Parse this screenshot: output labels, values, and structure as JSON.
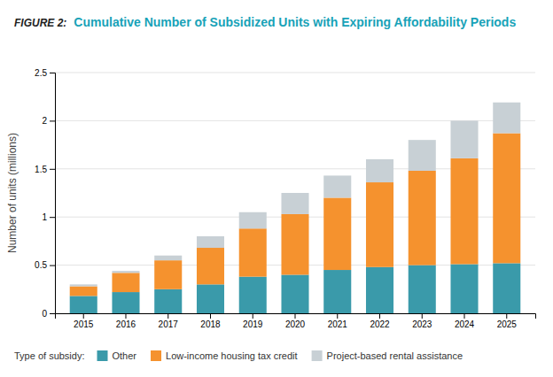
{
  "chart_data": {
    "type": "bar",
    "stacked": true,
    "title": "Cumulative Number of Subsidized Units with Expiring Affordability Periods",
    "annotations": [
      "FIGURE 2:",
      "Type of subsidy:"
    ],
    "ylabel": "Number of units (millions)",
    "categories": [
      "2015",
      "2016",
      "2017",
      "2018",
      "2019",
      "2020",
      "2021",
      "2022",
      "2023",
      "2024",
      "2025"
    ],
    "series": [
      {
        "name": "Other",
        "color": "#3a9aaa",
        "values": [
          0.18,
          0.22,
          0.25,
          0.3,
          0.38,
          0.4,
          0.45,
          0.48,
          0.5,
          0.51,
          0.52
        ]
      },
      {
        "name": "Low-income housing tax credit",
        "color": "#f5922e",
        "values": [
          0.1,
          0.2,
          0.3,
          0.38,
          0.5,
          0.63,
          0.75,
          0.88,
          0.98,
          1.1,
          1.35
        ]
      },
      {
        "name": "Project-based rental assistance",
        "color": "#c8d0d5",
        "values": [
          0.02,
          0.02,
          0.05,
          0.12,
          0.17,
          0.22,
          0.23,
          0.24,
          0.32,
          0.39,
          0.32
        ]
      }
    ],
    "ylim": [
      0,
      2.5
    ],
    "yticks": [
      0,
      0.5,
      1,
      1.5,
      2,
      2.5
    ],
    "grid": true,
    "legend": "bottom"
  }
}
